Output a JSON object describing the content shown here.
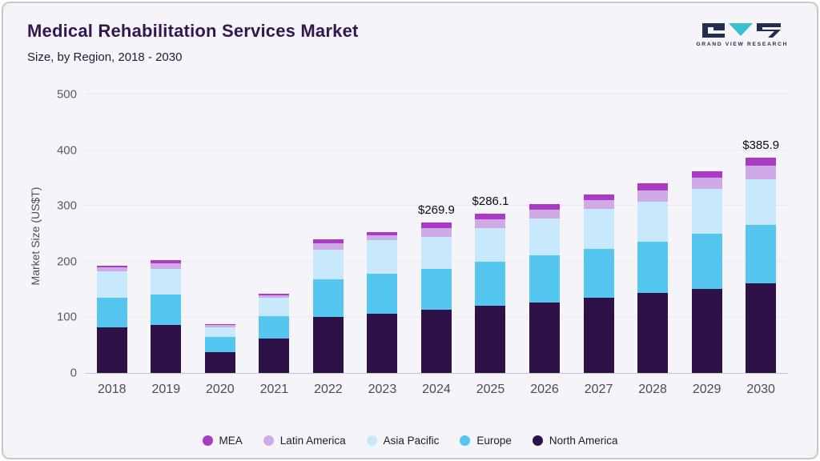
{
  "header": {
    "title": "Medical Rehabilitation Services Market",
    "subtitle": "Size, by Region, 2018 - 2030",
    "logo_text": "GRAND VIEW RESEARCH"
  },
  "chart_data": {
    "type": "bar",
    "variant": "stacked",
    "title": "Medical Rehabilitation Services Market Size, by Region, 2018 - 2030",
    "xlabel": "",
    "ylabel": "Market Size (US$T)",
    "ylim": [
      0,
      500
    ],
    "yticks": [
      0,
      100,
      200,
      300,
      400,
      500
    ],
    "legend_position": "bottom",
    "categories": [
      "2018",
      "2019",
      "2020",
      "2021",
      "2022",
      "2023",
      "2024",
      "2025",
      "2026",
      "2027",
      "2028",
      "2029",
      "2030"
    ],
    "series": [
      {
        "name": "North America",
        "color": "#2e1247",
        "values": [
          82,
          86,
          37,
          62,
          100,
          106,
          113,
          120,
          127,
          135,
          143,
          151,
          161
        ]
      },
      {
        "name": "Europe",
        "color": "#54c6f0",
        "values": [
          53,
          55,
          27,
          40,
          68,
          72,
          74,
          80,
          84,
          88,
          93,
          99,
          105
        ]
      },
      {
        "name": "Asia Pacific",
        "color": "#c8e9fb",
        "values": [
          48,
          46,
          18,
          33,
          54,
          60,
          58,
          60,
          67,
          72,
          72,
          80,
          82
        ]
      },
      {
        "name": "Latin America",
        "color": "#cfaae6",
        "values": [
          7,
          10,
          4,
          5,
          11,
          9,
          15,
          16,
          15,
          15,
          20,
          20,
          24
        ]
      },
      {
        "name": "MEA",
        "color": "#a93bc4",
        "values": [
          3,
          5,
          2,
          3,
          7,
          6,
          9.9,
          10.1,
          10,
          10,
          12,
          12,
          13.9
        ]
      }
    ],
    "totals": {
      "2024": 269.9,
      "2025": 286.1,
      "2030": 385.9
    },
    "annotations": {
      "2024": "$269.9",
      "2025": "$286.1",
      "2030": "$385.9"
    },
    "legend_order": [
      "MEA",
      "Latin America",
      "Asia Pacific",
      "Europe",
      "North America"
    ]
  }
}
